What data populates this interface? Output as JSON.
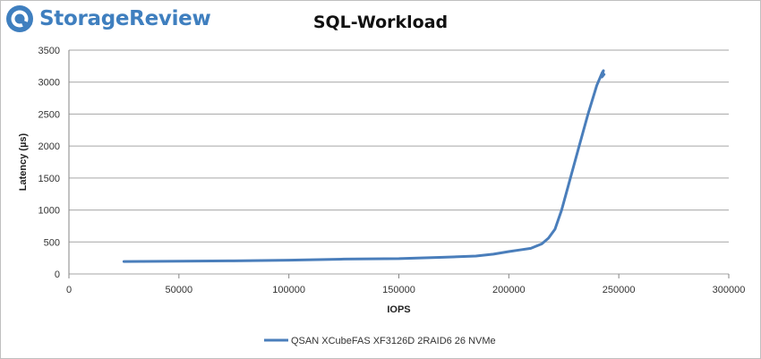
{
  "brand": {
    "name": "StorageReview",
    "icon": "storagereview-logo-icon",
    "color": "#3f7fbf"
  },
  "chart_data": {
    "type": "line",
    "title": "SQL-Workload",
    "xlabel": "IOPS",
    "ylabel": "Latency (µs)",
    "xlim": [
      0,
      300000
    ],
    "ylim": [
      0,
      3500
    ],
    "xticks": [
      0,
      50000,
      100000,
      150000,
      200000,
      250000,
      300000
    ],
    "yticks": [
      0,
      500,
      1000,
      1500,
      2000,
      2500,
      3000,
      3500
    ],
    "grid": true,
    "legend_position": "bottom",
    "series": [
      {
        "name": "QSAN XCubeFAS XF3126D 2RAID6 26 NVMe",
        "color": "#4a7ebb",
        "x": [
          25000,
          50000,
          75000,
          100000,
          125000,
          150000,
          170000,
          185000,
          193000,
          200000,
          205000,
          210000,
          215000,
          218000,
          221000,
          224000,
          228000,
          232000,
          236000,
          240000,
          242500,
          243000,
          242300,
          243300
        ],
        "y": [
          195,
          200,
          205,
          215,
          232,
          240,
          260,
          280,
          310,
          350,
          375,
          400,
          470,
          560,
          700,
          1000,
          1500,
          2000,
          2500,
          2950,
          3150,
          3180,
          3080,
          3120
        ]
      }
    ]
  }
}
